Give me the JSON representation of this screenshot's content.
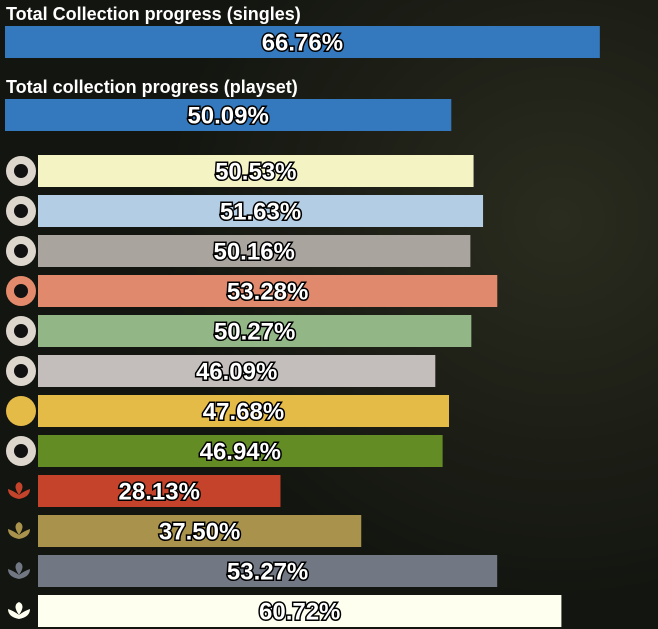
{
  "summary": [
    {
      "title": "Total Collection progress (singles)",
      "value": 66.76,
      "value_label": "66.76%",
      "color": "#3479bd"
    },
    {
      "title": "Total collection progress (playset)",
      "value": 50.09,
      "value_label": "50.09%",
      "color": "#3479bd"
    }
  ],
  "colors": {
    "values": [
      50.53,
      51.63,
      50.16,
      53.28,
      50.27,
      46.09,
      47.68,
      46.94,
      28.13,
      37.5,
      53.27,
      60.72
    ],
    "value_labels": [
      "50.53%",
      "51.63%",
      "50.16%",
      "53.28%",
      "50.27%",
      "46.09%",
      "47.68%",
      "46.94%",
      "28.13%",
      "37.50%",
      "53.27%",
      "60.72%"
    ],
    "colors": [
      "#f4f3c4",
      "#b3cde4",
      "#aaa49f",
      "#e0896c",
      "#92b686",
      "#c3bebb",
      "#e5bb48",
      "#638c24",
      "#c4432a",
      "#a8924c",
      "#717884",
      "#fffff0"
    ]
  }
}
